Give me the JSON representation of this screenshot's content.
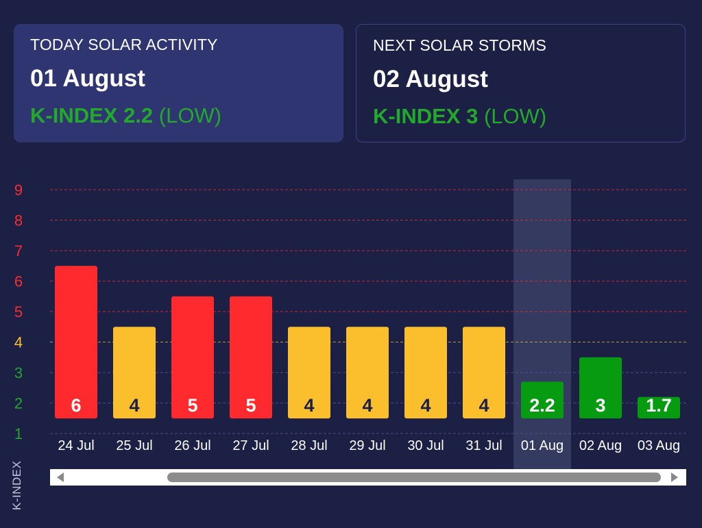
{
  "today": {
    "label": "TODAY SOLAR ACTIVITY",
    "date": "01 August",
    "k_label": "K-INDEX 2.2",
    "level": "(LOW)"
  },
  "next": {
    "label": "NEXT SOLAR STORMS",
    "date": "02 August",
    "k_label": "K-INDEX 3",
    "level": "(LOW)"
  },
  "colors": {
    "high": "#ff2a2e",
    "medium": "#fbbf2e",
    "low": "#069b10",
    "highlight": "#3a3f66"
  },
  "chart_data": {
    "type": "bar",
    "categories": [
      "24 Jul",
      "25 Jul",
      "26 Jul",
      "27 Jul",
      "28 Jul",
      "29 Jul",
      "30 Jul",
      "31 Jul",
      "01 Aug",
      "02 Aug",
      "03 Aug"
    ],
    "values": [
      6,
      4,
      5,
      5,
      4,
      4,
      4,
      4,
      2.2,
      3,
      1.7
    ],
    "ylabel": "K-INDEX",
    "yticks": [
      1,
      2,
      3,
      4,
      5,
      6,
      7,
      8,
      9
    ],
    "highlighted_category": "01 Aug",
    "grid": true,
    "scrollbar": true
  }
}
